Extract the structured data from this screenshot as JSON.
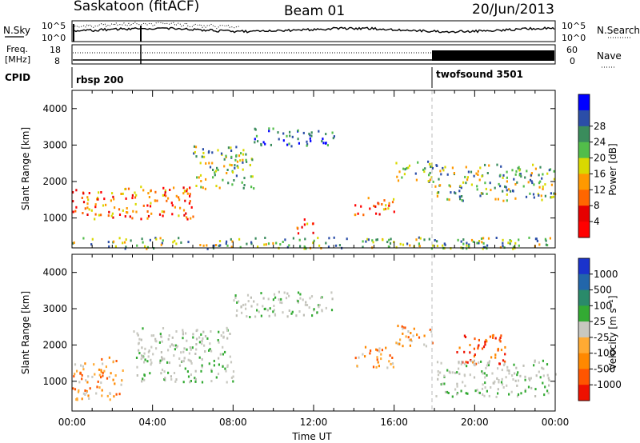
{
  "header": {
    "station": "Saskatoon (fitACF)",
    "beam": "Beam 01",
    "date": "20/Jun/2013"
  },
  "summary_panel": {
    "nsky_label": "N.Sky",
    "nsearch_label": "N.Search",
    "nsky_ticks": [
      "10^5",
      "10^0"
    ],
    "nsearch_ticks": [
      "10^5",
      "10^0"
    ],
    "freq_label_1": "Freq.",
    "freq_label_2": "[MHz]",
    "freq_ticks": [
      "18",
      "8"
    ],
    "nave_label": "Nave",
    "nave_ticks": [
      "60",
      "0"
    ],
    "cpid_label": "CPID",
    "cpid_segments": [
      {
        "name": "rbsp 200",
        "start_hour": 0,
        "end_hour": 18
      },
      {
        "name": "twofsound 3501",
        "start_hour": 18,
        "end_hour": 24
      }
    ]
  },
  "chart_data": [
    {
      "type": "heatmap",
      "name": "power",
      "xlabel": "",
      "ylabel": "Slant Range [km]",
      "xlim": [
        0,
        24
      ],
      "ylim": [
        180,
        4500
      ],
      "yticks": [
        1000,
        2000,
        3000,
        4000
      ],
      "colorbar": {
        "label": "Power [dB]",
        "ticks": [
          "4",
          "8",
          "12",
          "16",
          "20",
          "24",
          "28"
        ],
        "colors": [
          "#0000ff",
          "#2b4ea8",
          "#3a8c5c",
          "#52bd4a",
          "#d9d900",
          "#ff9900",
          "#ff6600",
          "#e60000",
          "#ff0000"
        ]
      },
      "scatter_bands": [
        {
          "t0": 0.0,
          "t1": 2.2,
          "r0": 1000,
          "r1": 1800,
          "level": "high"
        },
        {
          "t0": 2.2,
          "t1": 6.0,
          "r0": 1000,
          "r1": 1900,
          "level": "high"
        },
        {
          "t0": 6.0,
          "t1": 9.0,
          "r0": 1800,
          "r1": 3000,
          "level": "mid"
        },
        {
          "t0": 9.0,
          "t1": 13.0,
          "r0": 3000,
          "r1": 3500,
          "level": "low"
        },
        {
          "t0": 11.0,
          "t1": 12.0,
          "r0": 600,
          "r1": 1000,
          "level": "high"
        },
        {
          "t0": 14.0,
          "t1": 16.0,
          "r0": 1100,
          "r1": 1600,
          "level": "high"
        },
        {
          "t0": 16.0,
          "t1": 18.0,
          "r0": 2000,
          "r1": 2600,
          "level": "mid"
        },
        {
          "t0": 18.0,
          "t1": 24.0,
          "r0": 1500,
          "r1": 2500,
          "level": "mid"
        },
        {
          "t0": 0.0,
          "t1": 24.0,
          "r0": 180,
          "r1": 500,
          "level": "mid"
        }
      ]
    },
    {
      "type": "heatmap",
      "name": "velocity",
      "xlabel": "Time UT",
      "ylabel": "Slant Range [km]",
      "xlim": [
        0,
        24
      ],
      "ylim": [
        180,
        4500
      ],
      "xticks": [
        "00:00",
        "04:00",
        "08:00",
        "12:00",
        "16:00",
        "20:00",
        "00:00"
      ],
      "yticks": [
        1000,
        2000,
        3000,
        4000
      ],
      "colorbar": {
        "label": "Velocity [m s⁻¹]",
        "ticks": [
          "1000",
          "500",
          "100",
          "25",
          "-25",
          "-100",
          "-500",
          "-1000"
        ],
        "colors": [
          "#1a33cc",
          "#2266aa",
          "#2a8a6a",
          "#33aa33",
          "#c8c8c0",
          "#ffaa33",
          "#ff8800",
          "#ff5500",
          "#ee1100"
        ]
      },
      "scatter_bands": [
        {
          "t0": 0.0,
          "t1": 2.5,
          "r0": 500,
          "r1": 1700,
          "level": "away"
        },
        {
          "t0": 3.0,
          "t1": 8.0,
          "r0": 1000,
          "r1": 2500,
          "level": "zero"
        },
        {
          "t0": 8.0,
          "t1": 13.0,
          "r0": 2800,
          "r1": 3500,
          "level": "zero"
        },
        {
          "t0": 14.0,
          "t1": 16.0,
          "r0": 1400,
          "r1": 2000,
          "level": "away"
        },
        {
          "t0": 16.0,
          "t1": 18.0,
          "r0": 2000,
          "r1": 2600,
          "level": "away"
        },
        {
          "t0": 19.0,
          "t1": 21.5,
          "r0": 1500,
          "r1": 2300,
          "level": "strong-away"
        },
        {
          "t0": 18.0,
          "t1": 24.0,
          "r0": 600,
          "r1": 1600,
          "level": "zero"
        }
      ]
    }
  ]
}
